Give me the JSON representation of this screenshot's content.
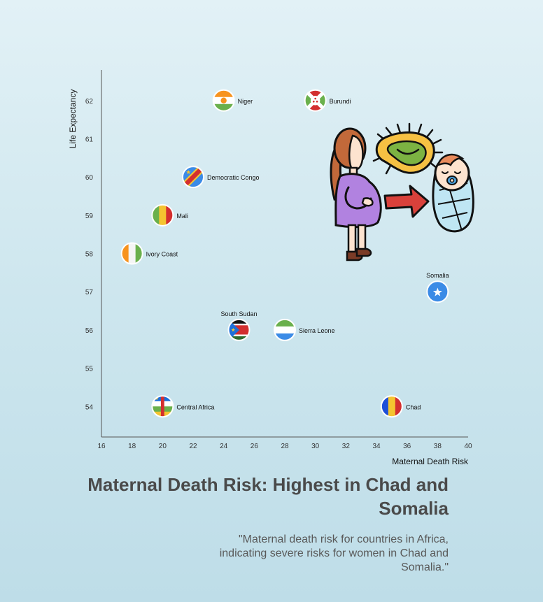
{
  "chart_data": {
    "type": "scatter",
    "title": "Maternal Death Risk: Highest in Chad and Somalia",
    "subtitle": "\"Maternal death risk for countries in Africa, indicating severe risks for women in Chad and Somalia.\"",
    "xlabel": "Maternal Death Risk",
    "ylabel": "Life Expectancy",
    "xlim": [
      16,
      40
    ],
    "ylim": [
      53.2,
      62.8
    ],
    "xticks": [
      16,
      18,
      20,
      22,
      24,
      26,
      28,
      30,
      32,
      34,
      36,
      38,
      40
    ],
    "yticks": [
      54,
      55,
      56,
      57,
      58,
      59,
      60,
      61,
      62
    ],
    "grid": false,
    "points": [
      {
        "label": "Niger",
        "x": 24,
        "y": 62,
        "label_pos": "right",
        "flag": "niger"
      },
      {
        "label": "Burundi",
        "x": 30,
        "y": 62,
        "label_pos": "right",
        "flag": "burundi"
      },
      {
        "label": "Democratic Congo",
        "x": 22,
        "y": 60,
        "label_pos": "right",
        "flag": "drc"
      },
      {
        "label": "Mali",
        "x": 20,
        "y": 59,
        "label_pos": "right",
        "flag": "mali"
      },
      {
        "label": "Ivory Coast",
        "x": 18,
        "y": 58,
        "label_pos": "right",
        "flag": "ivory_coast"
      },
      {
        "label": "Somalia",
        "x": 38,
        "y": 57,
        "label_pos": "top",
        "flag": "somalia"
      },
      {
        "label": "South Sudan",
        "x": 25,
        "y": 56,
        "label_pos": "top",
        "flag": "south_sudan"
      },
      {
        "label": "Sierra Leone",
        "x": 28,
        "y": 56,
        "label_pos": "right",
        "flag": "sierra_leone"
      },
      {
        "label": "Central Africa",
        "x": 20,
        "y": 54,
        "label_pos": "right",
        "flag": "car"
      },
      {
        "label": "Chad",
        "x": 35,
        "y": 54,
        "label_pos": "right",
        "flag": "chad"
      }
    ]
  },
  "colors": {
    "axis": "#555555",
    "tick_text": "#333333",
    "label_text": "#111111",
    "title": "#4a4a4a",
    "subtitle": "#595959"
  },
  "illustration": {
    "name": "mother-pathogen-baby-illustration"
  }
}
